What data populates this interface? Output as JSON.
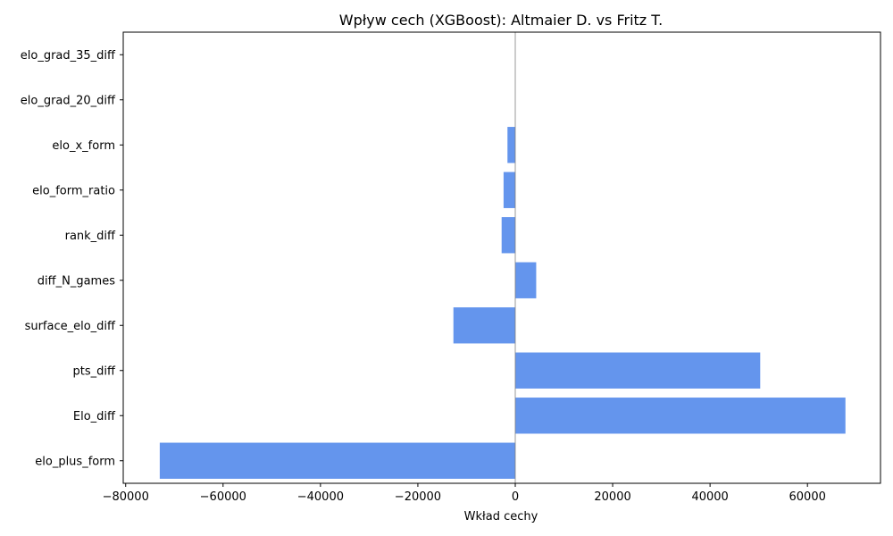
{
  "chart_data": {
    "type": "bar",
    "orientation": "horizontal",
    "title": "Wpływ cech (XGBoost): Altmaier D. vs Fritz T.",
    "xlabel": "Wkład cechy",
    "ylabel": "",
    "categories": [
      "elo_plus_form",
      "Elo_diff",
      "pts_diff",
      "surface_elo_diff",
      "diff_N_games",
      "rank_diff",
      "elo_form_ratio",
      "elo_x_form",
      "elo_grad_20_diff",
      "elo_grad_35_diff"
    ],
    "values": [
      -73000,
      67800,
      50300,
      -12700,
      4300,
      -2800,
      -2400,
      -1600,
      0,
      0
    ],
    "xlim": [
      -80500,
      75000
    ],
    "xticks": [
      -80000,
      -60000,
      -40000,
      -20000,
      0,
      20000,
      40000,
      60000
    ],
    "xtick_labels": [
      "−80000",
      "−60000",
      "−40000",
      "−20000",
      "0",
      "20000",
      "40000",
      "60000"
    ],
    "bar_color": "#6495ed",
    "zero_line_color": "#808080",
    "grid": false,
    "legend": false
  }
}
